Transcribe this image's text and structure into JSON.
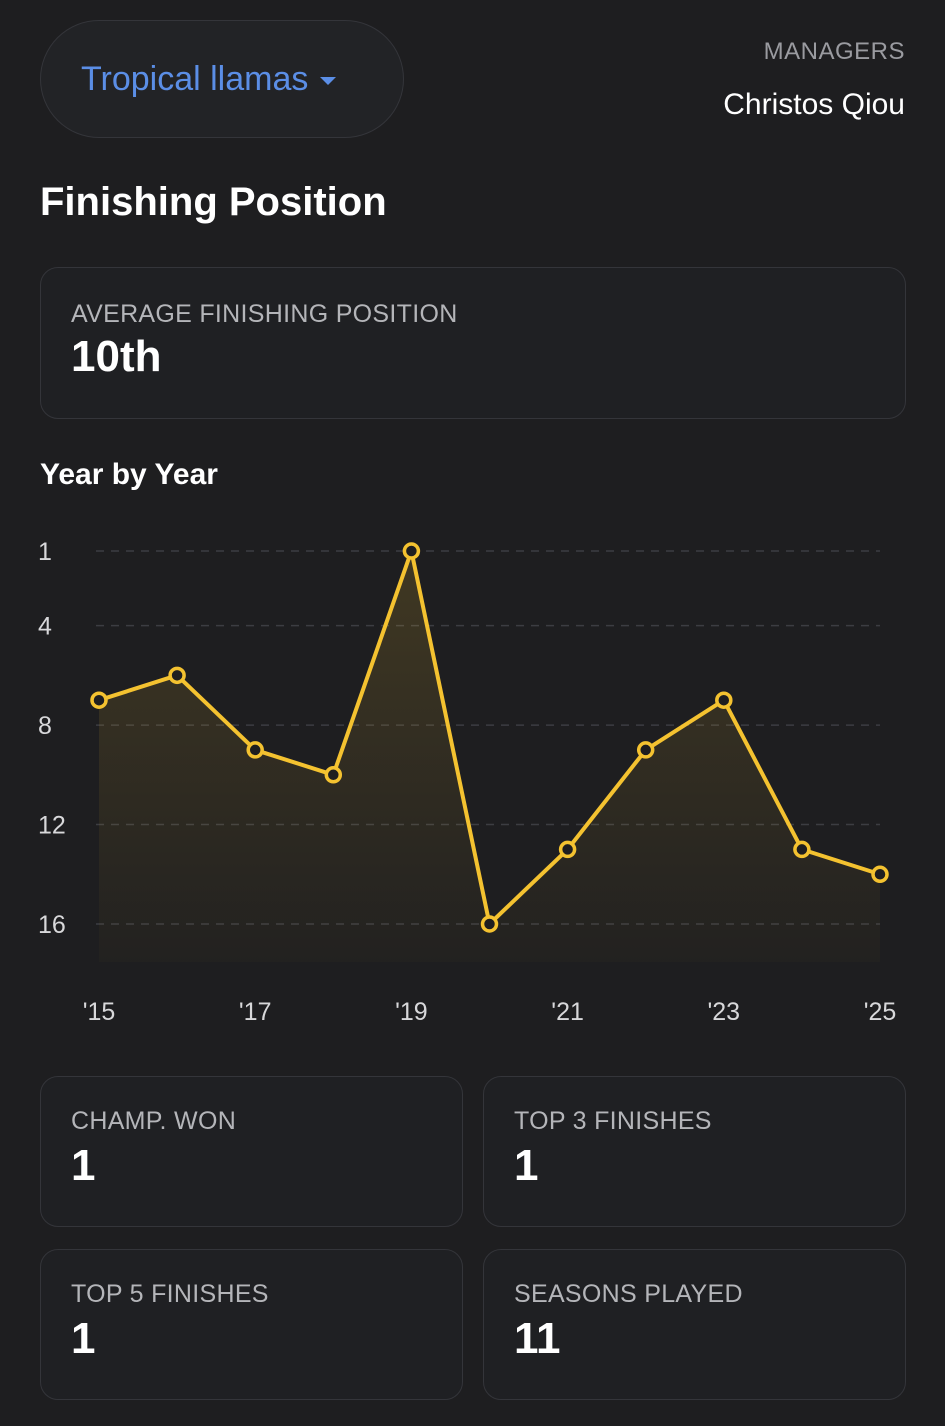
{
  "header": {
    "team_name": "Tropical llamas",
    "managers_label": "MANAGERS",
    "manager_name": "Christos Qiou"
  },
  "section_title": "Finishing Position",
  "average": {
    "label": "AVERAGE FINISHING POSITION",
    "value": "10th"
  },
  "year_by_year_title": "Year by Year",
  "colors": {
    "accent_line": "#f4c230",
    "team_link": "#5b8ee6",
    "background": "#1e1e20"
  },
  "chart_data": {
    "type": "area",
    "x": [
      2015,
      2016,
      2017,
      2018,
      2019,
      2020,
      2021,
      2022,
      2023,
      2024,
      2025
    ],
    "x_tick_labels": [
      "'15",
      "'17",
      "'19",
      "'21",
      "'23",
      "'25"
    ],
    "x_tick_values": [
      2015,
      2017,
      2019,
      2021,
      2023,
      2025
    ],
    "y_tick_labels": [
      "1",
      "4",
      "8",
      "12",
      "16"
    ],
    "y_ticks": [
      1,
      4,
      8,
      12,
      16
    ],
    "y_inverted": true,
    "series": [
      {
        "values": [
          7,
          6,
          9,
          10,
          1,
          16,
          13,
          9,
          7,
          13,
          14
        ]
      }
    ],
    "ylim": [
      1,
      16
    ],
    "grid": true,
    "title": "",
    "xlabel": "",
    "ylabel": ""
  },
  "stats": [
    {
      "label": "CHAMP. WON",
      "value": "1"
    },
    {
      "label": "TOP 3 FINISHES",
      "value": "1"
    },
    {
      "label": "TOP 5 FINISHES",
      "value": "1"
    },
    {
      "label": "SEASONS PLAYED",
      "value": "11"
    }
  ]
}
